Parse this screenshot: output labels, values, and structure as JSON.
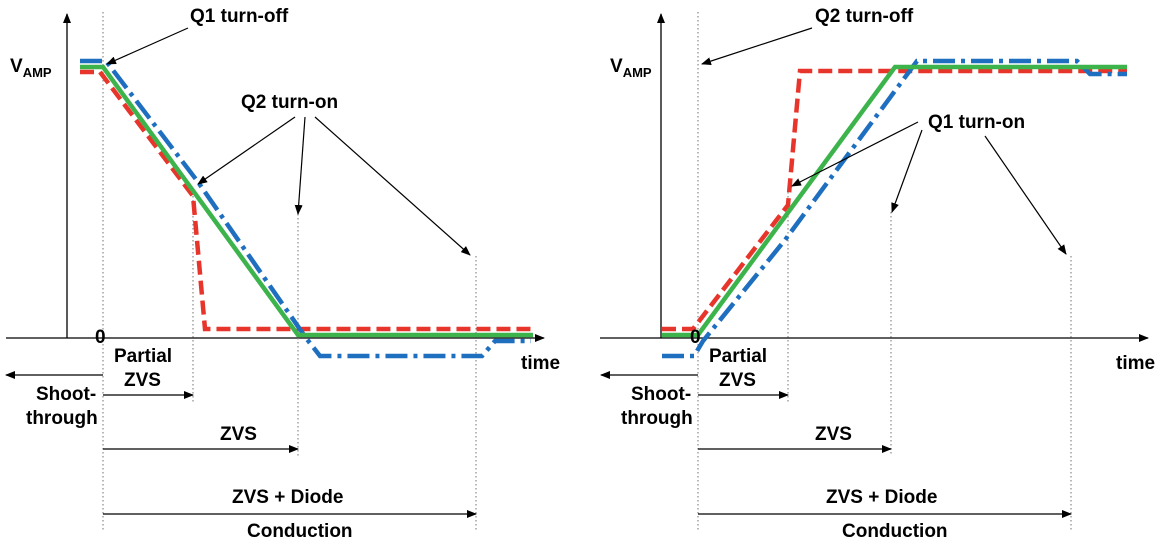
{
  "colors": {
    "green_trace": "#3cb44b",
    "red_trace": "#e8352b",
    "blue_trace": "#1f6fc0"
  },
  "left": {
    "vamp_label": "V",
    "vamp_sub": "AMP",
    "origin_label": "0",
    "time_label": "time",
    "q1_off_label": "Q1 turn-off",
    "q2_on_label": "Q2 turn-on",
    "partial_zvs_line1": "Partial",
    "partial_zvs_line2": "ZVS",
    "shoot_line1": "Shoot-",
    "shoot_line2": "through",
    "zvs_label": "ZVS",
    "zvs_diode_line1": "ZVS + Diode",
    "zvs_diode_line2": "Conduction"
  },
  "right": {
    "vamp_label": "V",
    "vamp_sub": "AMP",
    "origin_label": "0",
    "time_label": "time",
    "q2_off_label": "Q2 turn-off",
    "q1_on_label": "Q1 turn-on",
    "partial_zvs_line1": "Partial",
    "partial_zvs_line2": "ZVS",
    "shoot_line1": "Shoot-",
    "shoot_line2": "through",
    "zvs_label": "ZVS",
    "zvs_diode_line1": "ZVS + Diode",
    "zvs_diode_line2": "Conduction"
  }
}
